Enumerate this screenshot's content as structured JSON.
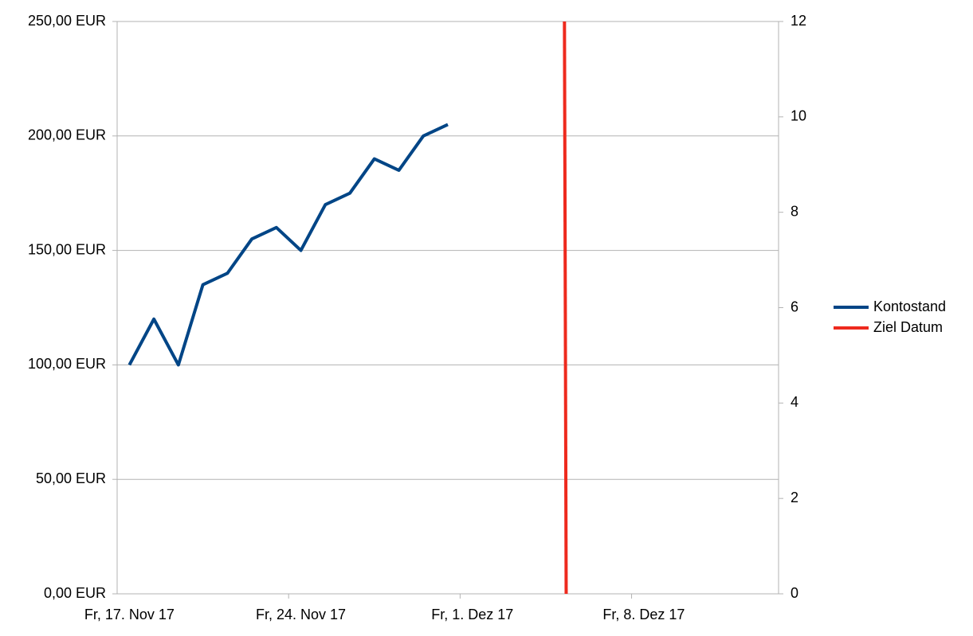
{
  "chart_data": {
    "type": "line",
    "categories": [
      "Fr, 17. Nov 17",
      null,
      null,
      null,
      null,
      null,
      null,
      "Fr, 24. Nov 17",
      null,
      null,
      null,
      null,
      null,
      null,
      "Fr, 1. Dez 17",
      null,
      null,
      null,
      null,
      null,
      null,
      "Fr, 8. Dez 17",
      null,
      null,
      null,
      null,
      null
    ],
    "series": [
      {
        "name": "Kontostand",
        "color": "#004586",
        "values": [
          100,
          120,
          100,
          135,
          140,
          155,
          160,
          150,
          170,
          175,
          190,
          185,
          200,
          205,
          null,
          null,
          null,
          null,
          null,
          null,
          null,
          null,
          null,
          null,
          null,
          null,
          null
        ]
      },
      {
        "name": "Ziel Datum",
        "color": "#ee2a1e",
        "axis": "y2",
        "x": [
          17.76,
          17.83
        ],
        "values": [
          12,
          0
        ]
      }
    ],
    "ylim": [
      0,
      250
    ],
    "yticks": [
      {
        "value": 0,
        "label": "0,00 EUR"
      },
      {
        "value": 50,
        "label": "50,00 EUR"
      },
      {
        "value": 100,
        "label": "100,00 EUR"
      },
      {
        "value": 150,
        "label": "150,00 EUR"
      },
      {
        "value": 200,
        "label": "200,00 EUR"
      },
      {
        "value": 250,
        "label": "250,00 EUR"
      }
    ],
    "y2lim": [
      0,
      12
    ],
    "y2ticks": [
      0,
      2,
      4,
      6,
      8,
      10,
      12
    ],
    "grid": true,
    "legend": "right"
  }
}
